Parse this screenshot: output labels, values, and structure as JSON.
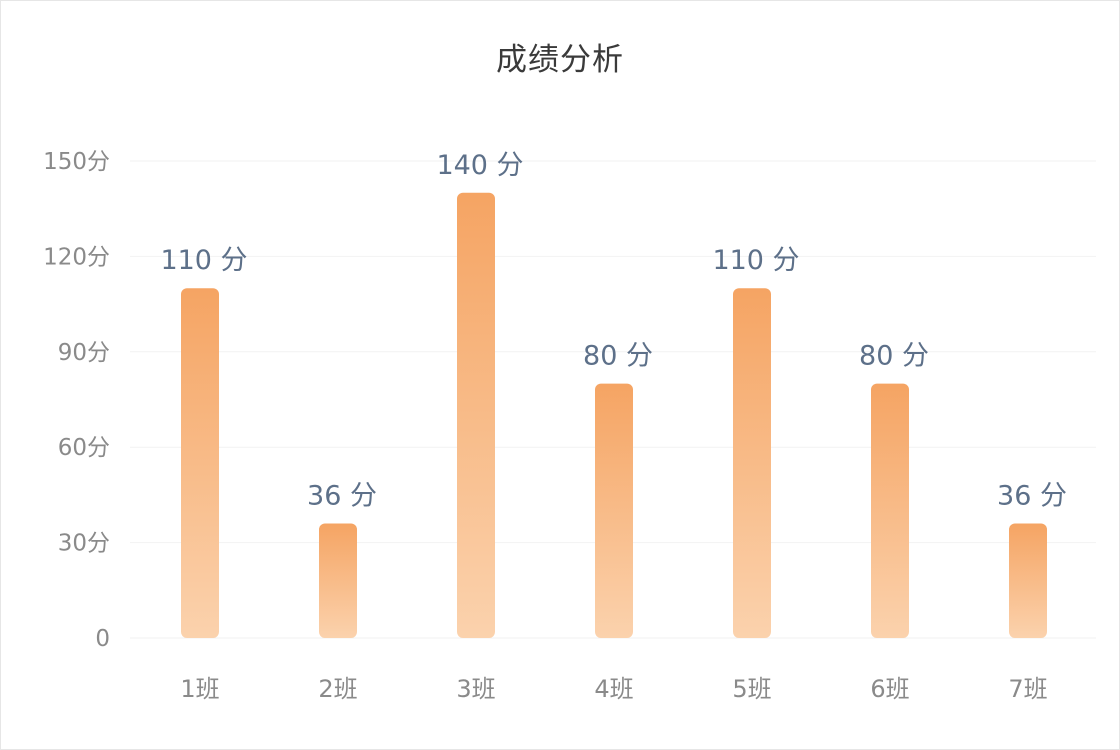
{
  "chart_data": {
    "type": "bar",
    "title": "成绩分析",
    "categories": [
      "1班",
      "2班",
      "3班",
      "4班",
      "5班",
      "6班",
      "7班"
    ],
    "values": [
      110,
      36,
      140,
      80,
      110,
      80,
      36
    ],
    "data_label_suffix": " 分",
    "ytick_suffix": "分",
    "yticks": [
      0,
      30,
      60,
      90,
      120,
      150
    ],
    "ylim": [
      0,
      150
    ],
    "grid": true,
    "legend": "none",
    "colors": {
      "bar_top": "#f5a463",
      "bar_bottom": "#fbd2ad",
      "grid": "#f2f2f2",
      "tick_text": "#8a8a8a",
      "label_text": "#5d7089"
    }
  }
}
